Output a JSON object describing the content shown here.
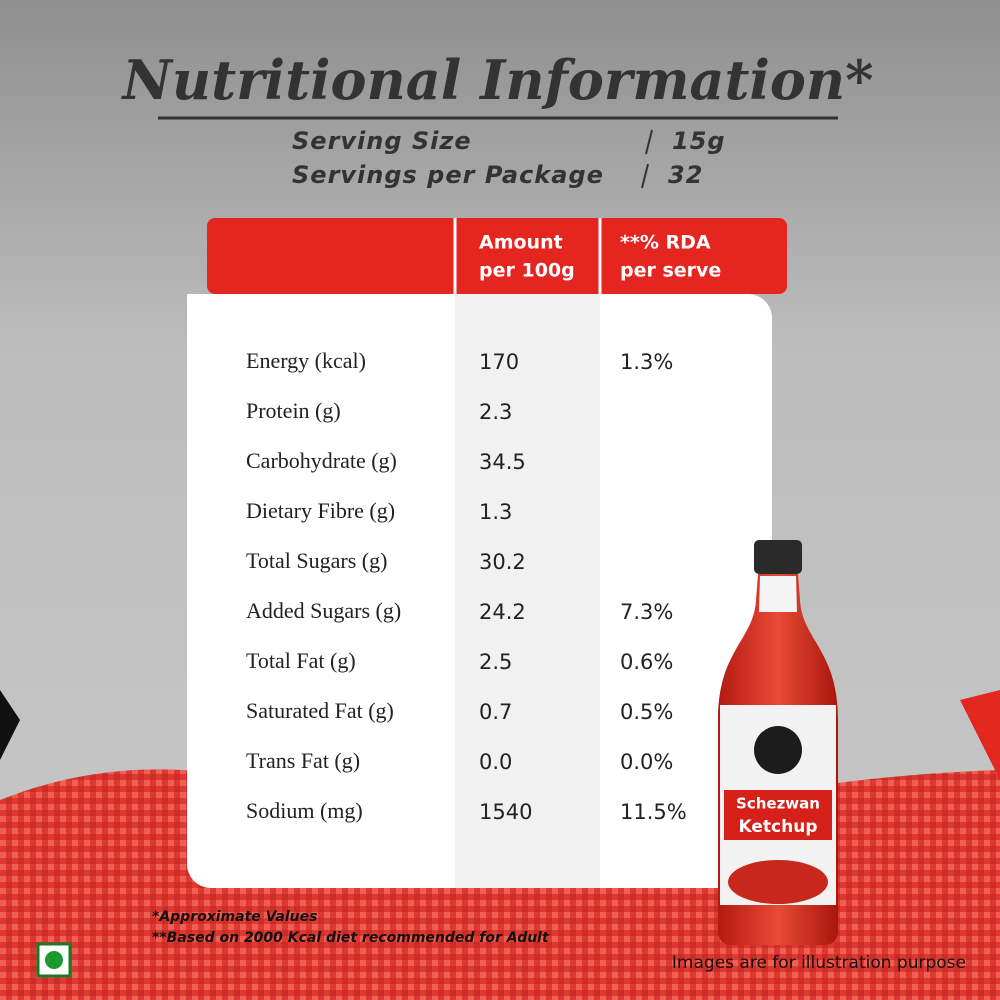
{
  "title": "Nutritional Information*",
  "serving": [
    {
      "label": "Serving Size",
      "value": "15g"
    },
    {
      "label": "Servings per Package",
      "value": "32"
    }
  ],
  "table": {
    "header": [
      [
        "Amount",
        "per 100g"
      ],
      [
        "**% RDA",
        "per serve"
      ]
    ],
    "rows": [
      [
        "Energy (kcal)",
        "170",
        "1.3%"
      ],
      [
        "Protein (g)",
        "2.3",
        null
      ],
      [
        "Carbohydrate (g)",
        "34.5",
        null
      ],
      [
        "Dietary Fibre (g)",
        "1.3",
        null
      ],
      [
        "Total Sugars (g)",
        "30.2",
        null
      ],
      [
        "Added Sugars (g)",
        "24.2",
        "7.3%"
      ],
      [
        "Total Fat (g)",
        "2.5",
        "0.6%"
      ],
      [
        "Saturated Fat (g)",
        "0.7",
        "0.5%"
      ],
      [
        "Trans Fat (g)",
        "0.0",
        "0.0%"
      ],
      [
        "Sodium (mg)",
        "1540",
        "11.5%"
      ]
    ]
  },
  "footnotes": [
    "*Approximate Values",
    "**Based on 2000 Kcal diet recommended for Adult"
  ],
  "disclaimer": "Images are for illustration purpose",
  "bottle_label": [
    "Schezwan",
    "Ketchup"
  ]
}
